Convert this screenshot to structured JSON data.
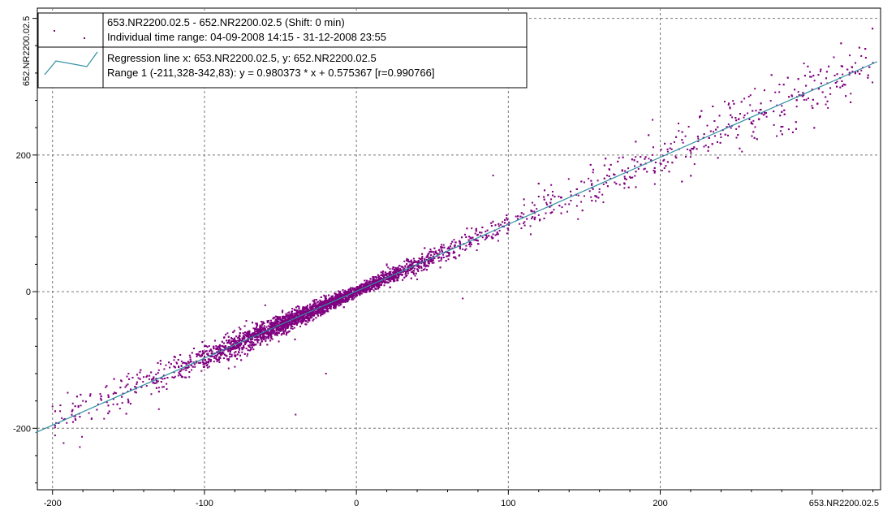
{
  "chart_data": {
    "type": "scatter",
    "xlabel": "653.NR2200.02.5",
    "ylabel": "652.NR2200.02.5",
    "xlim": [
      -210,
      345
    ],
    "ylim": [
      -290,
      415
    ],
    "x_ticks": [
      -200,
      -100,
      0,
      100,
      200
    ],
    "x_tick_labels": [
      "-200",
      "-100",
      "0",
      "100",
      "200"
    ],
    "y_ticks": [
      -200,
      0,
      200
    ],
    "y_tick_labels": [
      "-200",
      "0",
      "200"
    ],
    "grid": true,
    "legend_position": "top-left",
    "point_color": "#800080",
    "line_color": "#2f8f9f",
    "series": [
      {
        "kind": "points",
        "label_line1": "653.NR2200.02.5 - 652.NR2200.02.5 (Shift: 0 min)",
        "label_line2": "Individual time range: 04-09-2008  14:15 - 31-12-2008  23:55",
        "sample_points": [
          [
            -200,
            -168
          ],
          [
            -195,
            -175
          ],
          [
            -190,
            -148
          ],
          [
            -185,
            -182
          ],
          [
            -180,
            -160
          ],
          [
            -175,
            -150
          ],
          [
            -170,
            -165
          ],
          [
            -165,
            -140
          ],
          [
            -160,
            -165
          ],
          [
            -155,
            -130
          ],
          [
            -150,
            -160
          ],
          [
            -145,
            -142
          ],
          [
            -140,
            -125
          ],
          [
            -135,
            -150
          ],
          [
            -130,
            -115
          ],
          [
            -125,
            -135
          ],
          [
            -120,
            -118
          ],
          [
            -115,
            -102
          ],
          [
            -110,
            -125
          ],
          [
            -105,
            -95
          ],
          [
            -100,
            -110
          ],
          [
            -95,
            -90
          ],
          [
            -90,
            -96
          ],
          [
            -85,
            -75
          ],
          [
            -80,
            -82
          ],
          [
            -75,
            -70
          ],
          [
            -70,
            -78
          ],
          [
            -65,
            -60
          ],
          [
            -60,
            -66
          ],
          [
            -55,
            -50
          ],
          [
            -50,
            -58
          ],
          [
            -45,
            -40
          ],
          [
            -40,
            -46
          ],
          [
            -35,
            -30
          ],
          [
            -30,
            -38
          ],
          [
            -25,
            -22
          ],
          [
            -20,
            -28
          ],
          [
            -15,
            -12
          ],
          [
            -10,
            -18
          ],
          [
            -5,
            0
          ],
          [
            0,
            -5
          ],
          [
            5,
            8
          ],
          [
            10,
            4
          ],
          [
            15,
            18
          ],
          [
            20,
            14
          ],
          [
            25,
            28
          ],
          [
            30,
            24
          ],
          [
            35,
            38
          ],
          [
            40,
            33
          ],
          [
            45,
            48
          ],
          [
            50,
            42
          ],
          [
            55,
            58
          ],
          [
            60,
            52
          ],
          [
            65,
            68
          ],
          [
            70,
            62
          ],
          [
            75,
            78
          ],
          [
            80,
            70
          ],
          [
            85,
            88
          ],
          [
            90,
            84
          ],
          [
            95,
            98
          ],
          [
            100,
            90
          ],
          [
            105,
            110
          ],
          [
            110,
            100
          ],
          [
            115,
            118
          ],
          [
            120,
            112
          ],
          [
            125,
            130
          ],
          [
            130,
            120
          ],
          [
            135,
            138
          ],
          [
            140,
            128
          ],
          [
            145,
            150
          ],
          [
            150,
            140
          ],
          [
            155,
            158
          ],
          [
            160,
            150
          ],
          [
            165,
            170
          ],
          [
            170,
            160
          ],
          [
            175,
            178
          ],
          [
            180,
            168
          ],
          [
            185,
            190
          ],
          [
            190,
            180
          ],
          [
            195,
            200
          ],
          [
            200,
            188
          ],
          [
            205,
            205
          ],
          [
            210,
            198
          ],
          [
            215,
            218
          ],
          [
            220,
            206
          ],
          [
            225,
            224
          ],
          [
            230,
            214
          ],
          [
            235,
            234
          ],
          [
            240,
            226
          ],
          [
            245,
            245
          ],
          [
            250,
            238
          ],
          [
            255,
            255
          ],
          [
            260,
            248
          ],
          [
            265,
            262
          ],
          [
            270,
            256
          ],
          [
            280,
            272
          ],
          [
            290,
            285
          ],
          [
            300,
            296
          ],
          [
            310,
            305
          ],
          [
            320,
            318
          ],
          [
            330,
            322
          ],
          [
            340,
            335
          ],
          [
            90,
            170
          ],
          [
            -130,
            -172
          ],
          [
            -40,
            -180
          ],
          [
            -20,
            -120
          ],
          [
            40,
            18
          ],
          [
            -60,
            -20
          ],
          [
            70,
            -10
          ],
          [
            -150,
            -120
          ],
          [
            150,
            160
          ],
          [
            -100,
            -80
          ],
          [
            20,
            40
          ],
          [
            -80,
            -110
          ]
        ]
      },
      {
        "kind": "regression",
        "label_line1": "Regression line     x: 653.NR2200.02.5,  y: 652.NR2200.02.5",
        "label_line2": "Range 1 (-211,328-342,83):  y = 0.980373 * x + 0.575367  [r=0.990766]",
        "slope": 0.980373,
        "intercept": 0.575367,
        "x_range": [
          -211.328,
          342.83
        ]
      }
    ]
  }
}
